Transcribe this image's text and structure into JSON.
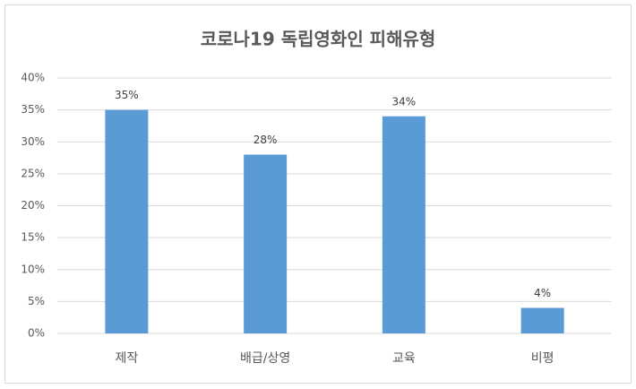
{
  "chart_data": {
    "type": "bar",
    "title": "코로나19 독립영화인 피해유형",
    "categories": [
      "제작",
      "배급/상영",
      "교육",
      "비평"
    ],
    "values": [
      35,
      28,
      34,
      4
    ],
    "value_labels": [
      "35%",
      "28%",
      "34%",
      "4%"
    ],
    "color": "#5b9bd5",
    "ylim": [
      0,
      40
    ],
    "yticks": [
      {
        "value": 0,
        "label": "0%"
      },
      {
        "value": 5,
        "label": "5%"
      },
      {
        "value": 10,
        "label": "10%"
      },
      {
        "value": 15,
        "label": "15%"
      },
      {
        "value": 20,
        "label": "20%"
      },
      {
        "value": 25,
        "label": "25%"
      },
      {
        "value": 30,
        "label": "30%"
      },
      {
        "value": 35,
        "label": "35%"
      },
      {
        "value": 40,
        "label": "40%"
      }
    ],
    "grid": true
  }
}
